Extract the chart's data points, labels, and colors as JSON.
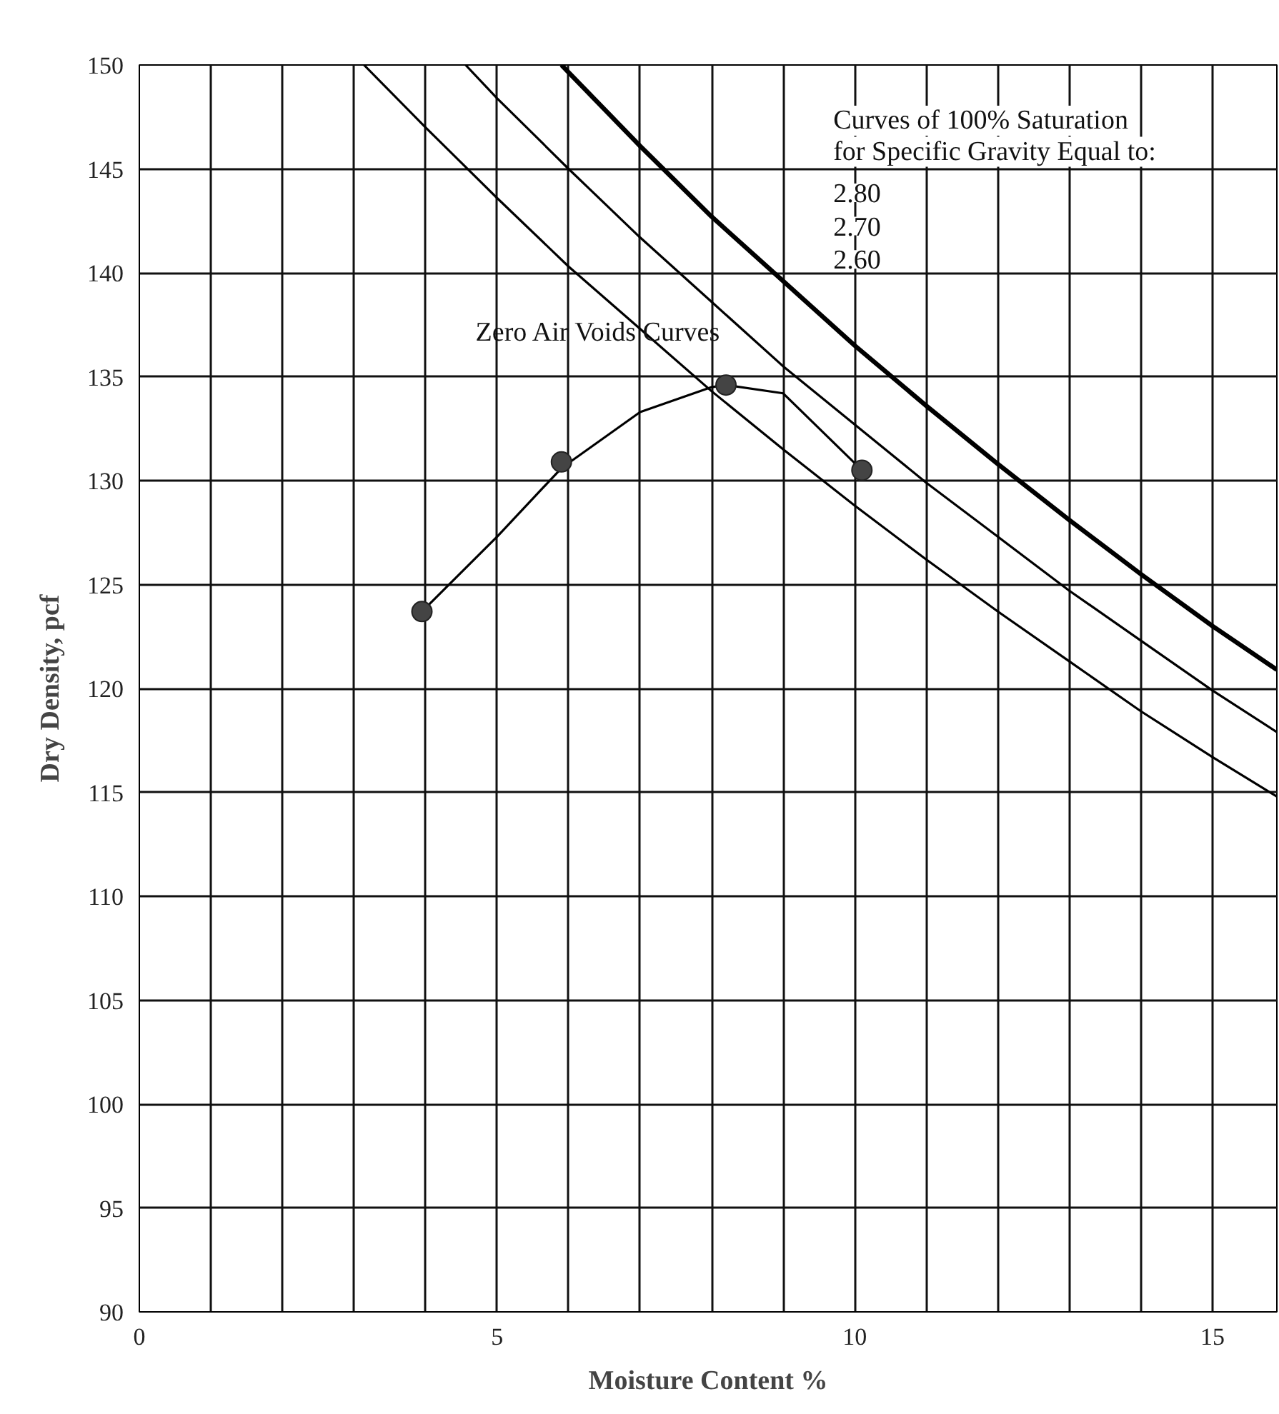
{
  "chart_data": {
    "type": "line",
    "xlabel": "Moisture Content %",
    "ylabel": "Dry Density, pcf",
    "xlim": [
      0,
      15.9
    ],
    "ylim": [
      90,
      150
    ],
    "xticks": [
      0,
      {
        "value": 1,
        "label": null
      },
      {
        "value": 2,
        "label": null
      },
      {
        "value": 3,
        "label": null
      },
      {
        "value": 4,
        "label": null
      },
      5,
      {
        "value": 6,
        "label": null
      },
      {
        "value": 7,
        "label": null
      },
      {
        "value": 8,
        "label": null
      },
      {
        "value": 9,
        "label": null
      },
      10,
      {
        "value": 11,
        "label": null
      },
      {
        "value": 12,
        "label": null
      },
      {
        "value": 13,
        "label": null
      },
      {
        "value": 14,
        "label": null
      },
      15
    ],
    "yticks": [
      90,
      95,
      100,
      105,
      110,
      115,
      120,
      125,
      130,
      135,
      140,
      145,
      150
    ],
    "grid": true,
    "line_style": "solid",
    "series": [
      {
        "color": "#000000",
        "x": [
          5.9,
          7,
          8,
          9,
          10,
          11,
          12,
          13,
          14,
          15,
          15.9
        ],
        "values": [
          150.0,
          146.1,
          142.7,
          139.6,
          136.5,
          133.6,
          130.8,
          128.1,
          125.5,
          123.0,
          120.9
        ]
      },
      {
        "color": "#000000",
        "x": [
          4.56,
          5,
          6,
          7,
          8,
          9,
          10,
          11,
          12,
          13,
          14,
          15,
          15.9
        ],
        "values": [
          150.0,
          148.4,
          145.0,
          141.7,
          138.6,
          135.5,
          132.7,
          129.9,
          127.3,
          124.7,
          122.3,
          119.9,
          117.9
        ]
      },
      {
        "color": "#000000",
        "x": [
          3.14,
          4,
          5,
          6,
          7,
          8,
          9,
          10,
          11,
          12,
          13,
          14,
          15,
          15.9
        ],
        "values": [
          150.0,
          147.0,
          143.6,
          140.3,
          137.3,
          134.3,
          131.5,
          128.8,
          126.2,
          123.7,
          121.3,
          118.9,
          116.7,
          114.8
        ]
      },
      {
        "color": "#000000",
        "x": [
          3.95,
          5,
          5.9,
          7,
          8,
          8.2,
          9,
          10.1
        ],
        "values": [
          123.7,
          127.3,
          130.6,
          133.3,
          134.5,
          134.6,
          134.2,
          130.5
        ]
      },
      {
        "type": "scatter",
        "color": "#444444",
        "marker": "circle",
        "x": [
          3.95,
          5.9,
          8.2,
          10.1
        ],
        "values": [
          123.7,
          130.9,
          134.6,
          130.5
        ]
      }
    ],
    "annotations": [
      "Zero Air Voids Curves",
      "Curves of 100% Saturation",
      "for Specific Gravity Equal to:",
      "2.80",
      "2.70",
      "2.60"
    ]
  }
}
